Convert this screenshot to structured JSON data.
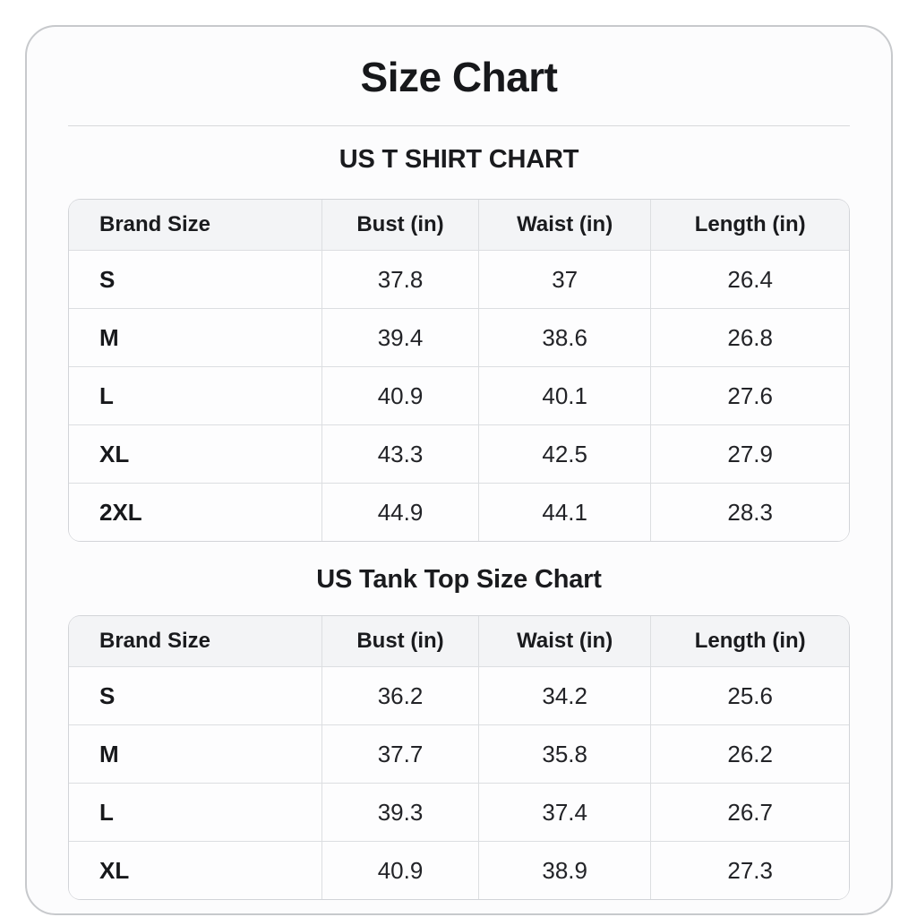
{
  "page": {
    "title": "Size Chart"
  },
  "chart_data": [
    {
      "type": "table",
      "title": "US T SHIRT CHART",
      "columns": [
        "Brand Size",
        "Bust (in)",
        "Waist (in)",
        "Length (in)"
      ],
      "rows": [
        [
          "S",
          "37.8",
          "37",
          "26.4"
        ],
        [
          "M",
          "39.4",
          "38.6",
          "26.8"
        ],
        [
          "L",
          "40.9",
          "40.1",
          "27.6"
        ],
        [
          "XL",
          "43.3",
          "42.5",
          "27.9"
        ],
        [
          "2XL",
          "44.9",
          "44.1",
          "28.3"
        ]
      ]
    },
    {
      "type": "table",
      "title": "US Tank Top Size Chart",
      "columns": [
        "Brand Size",
        "Bust (in)",
        "Waist (in)",
        "Length (in)"
      ],
      "rows": [
        [
          "S",
          "36.2",
          "34.2",
          "25.6"
        ],
        [
          "M",
          "37.7",
          "35.8",
          "26.2"
        ],
        [
          "L",
          "39.3",
          "37.4",
          "26.7"
        ],
        [
          "XL",
          "40.9",
          "38.9",
          "27.3"
        ]
      ]
    }
  ]
}
